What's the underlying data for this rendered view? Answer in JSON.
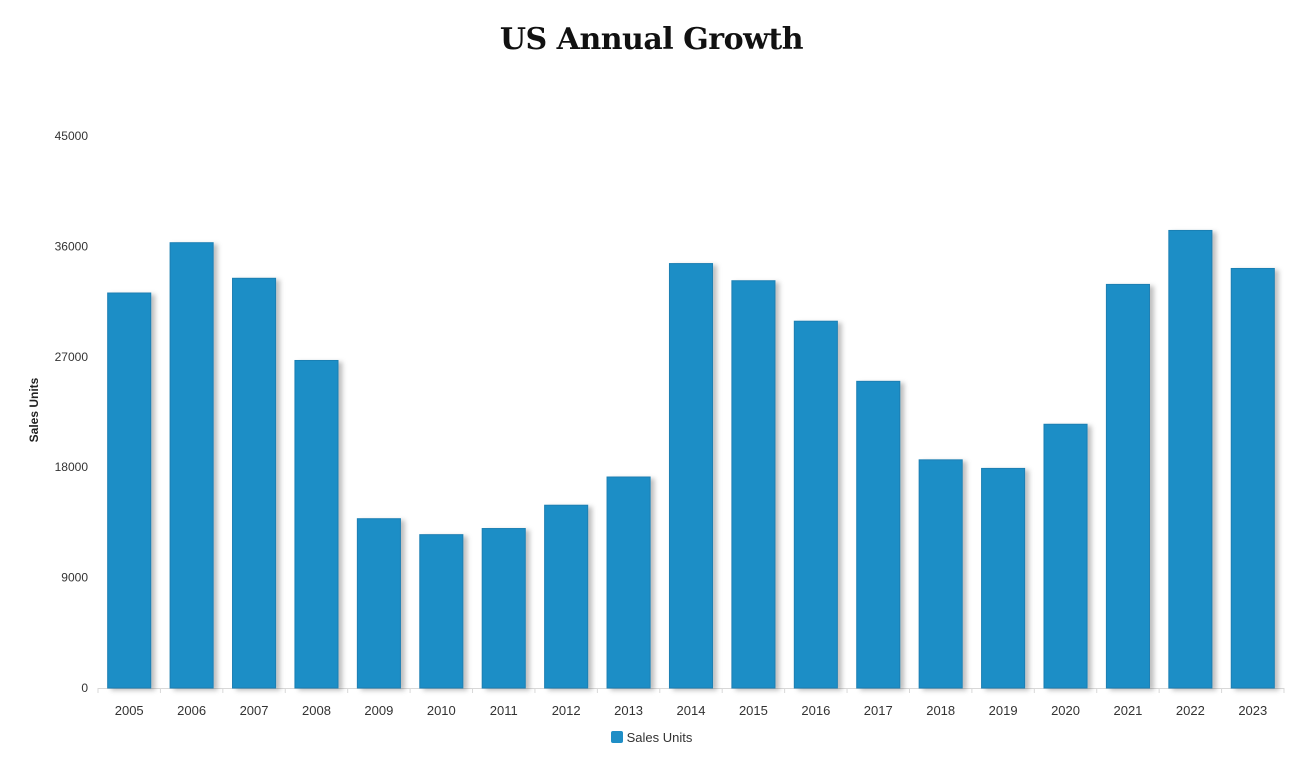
{
  "chart_data": {
    "type": "bar",
    "title": "US Annual Growth",
    "xlabel": "",
    "ylabel": "Sales Units",
    "ylim": [
      0,
      45000
    ],
    "yticks": [
      0,
      9000,
      18000,
      27000,
      36000,
      45000
    ],
    "categories": [
      "2005",
      "2006",
      "2007",
      "2008",
      "2009",
      "2010",
      "2011",
      "2012",
      "2013",
      "2014",
      "2015",
      "2016",
      "2017",
      "2018",
      "2019",
      "2020",
      "2021",
      "2022",
      "2023"
    ],
    "series": [
      {
        "name": "Sales Units",
        "color": "#1f8ec6",
        "values": [
          32200,
          36300,
          33400,
          26700,
          13800,
          12500,
          13000,
          14900,
          17200,
          34600,
          33200,
          29900,
          25000,
          18600,
          17900,
          21500,
          32900,
          37300,
          34200
        ]
      }
    ],
    "grid": false,
    "legend_position": "bottom"
  }
}
